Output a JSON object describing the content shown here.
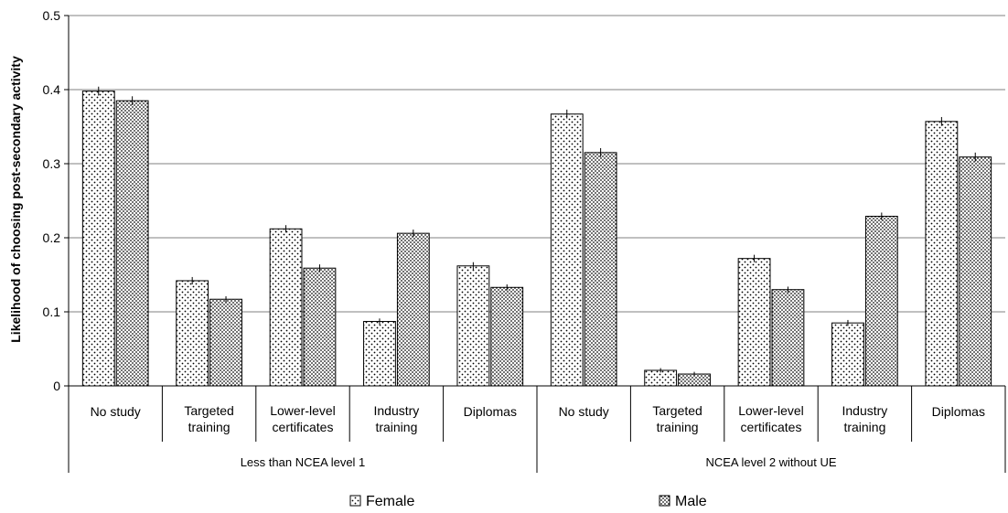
{
  "chart_data": {
    "type": "bar",
    "ylabel": "Likelihood of choosing post-secondary activity",
    "ylim": [
      0,
      0.5
    ],
    "yticks": [
      "0",
      "0.1",
      "0.2",
      "0.3",
      "0.4",
      "0.5"
    ],
    "grid": true,
    "legend_position": "bottom",
    "groups": [
      {
        "label": "Less than NCEA level 1",
        "categories": [
          [
            "No study"
          ],
          [
            "Targeted",
            "training"
          ],
          [
            "Lower-level",
            "certificates"
          ],
          [
            "Industry",
            "training"
          ],
          [
            "Diplomas"
          ]
        ]
      },
      {
        "label": "NCEA level 2 without UE",
        "categories": [
          [
            "No study"
          ],
          [
            "Targeted",
            "training"
          ],
          [
            "Lower-level",
            "certificates"
          ],
          [
            "Industry",
            "training"
          ],
          [
            "Diplomas"
          ]
        ]
      }
    ],
    "series": [
      {
        "name": "Female",
        "pattern": "sparse-dots",
        "values": [
          0.398,
          0.142,
          0.212,
          0.087,
          0.162,
          0.367,
          0.021,
          0.172,
          0.085,
          0.357
        ],
        "error": [
          0.006,
          0.005,
          0.005,
          0.004,
          0.005,
          0.006,
          0.003,
          0.005,
          0.004,
          0.006
        ]
      },
      {
        "name": "Male",
        "pattern": "dense-dots",
        "values": [
          0.385,
          0.117,
          0.159,
          0.206,
          0.133,
          0.315,
          0.016,
          0.13,
          0.229,
          0.309
        ],
        "error": [
          0.006,
          0.004,
          0.005,
          0.005,
          0.004,
          0.006,
          0.003,
          0.004,
          0.005,
          0.006
        ]
      }
    ],
    "colors": {
      "bar_fill": "#ffffff",
      "dots": "#000000",
      "grid": "#808080",
      "axis": "#000000"
    }
  }
}
